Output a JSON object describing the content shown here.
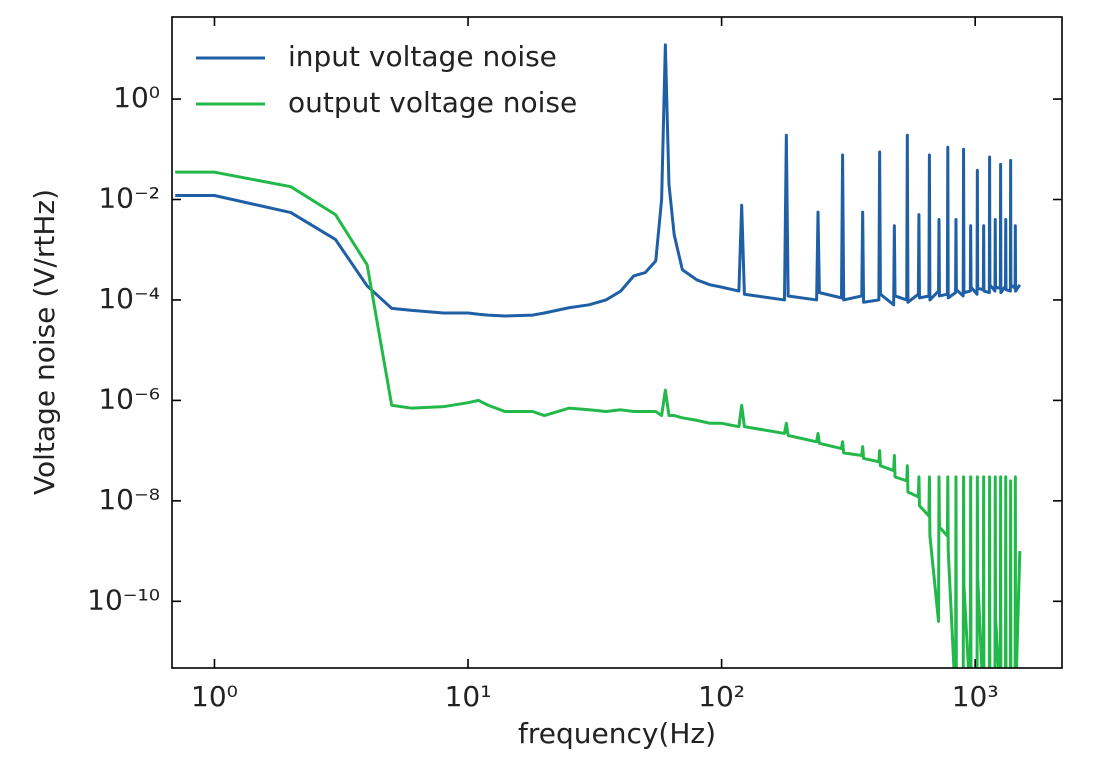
{
  "chart_data": {
    "type": "line",
    "xlabel": "frequency(Hz)",
    "ylabel": "Voltage noise (V/rtHz)",
    "xscale": "log",
    "yscale": "log",
    "xlim": [
      0.68,
      2200
    ],
    "ylim": [
      4.7e-12,
      43
    ],
    "xticks": [
      {
        "value": 1,
        "label": "10⁰"
      },
      {
        "value": 10,
        "label": "10¹"
      },
      {
        "value": 100,
        "label": "10²"
      },
      {
        "value": 1000,
        "label": "10³"
      }
    ],
    "yticks": [
      {
        "value": 1e-10,
        "label": "10⁻¹⁰"
      },
      {
        "value": 1e-08,
        "label": "10⁻⁸"
      },
      {
        "value": 1e-06,
        "label": "10⁻⁶"
      },
      {
        "value": 0.0001,
        "label": "10⁻⁴"
      },
      {
        "value": 0.01,
        "label": "10⁻²"
      },
      {
        "value": 1,
        "label": "10⁰"
      }
    ],
    "legend": "upper left",
    "x": [
      0.7,
      1,
      2,
      3,
      4,
      5,
      6,
      8,
      10,
      11,
      12,
      14,
      18,
      20,
      25,
      30,
      35,
      40,
      45,
      50,
      55,
      58,
      60,
      62,
      65,
      70,
      80,
      90,
      100,
      117,
      120,
      123,
      177,
      180,
      183,
      237,
      240,
      243,
      297,
      300,
      303,
      357,
      360,
      363,
      417,
      420,
      423,
      477,
      480,
      483,
      537,
      540,
      543,
      597,
      600,
      603,
      657,
      660,
      663,
      717,
      720,
      723,
      777,
      780,
      783,
      837,
      840,
      843,
      897,
      900,
      903,
      957,
      960,
      963,
      1017,
      1020,
      1023,
      1077,
      1080,
      1083,
      1137,
      1140,
      1143,
      1197,
      1200,
      1203,
      1257,
      1260,
      1263,
      1317,
      1320,
      1323,
      1377,
      1380,
      1383,
      1437,
      1440,
      1443,
      1500
    ],
    "series": [
      {
        "name": "input voltage noise",
        "color": "#1f5fa6",
        "values": [
          0.012,
          0.012,
          0.0055,
          0.0016,
          0.00019,
          6.8e-05,
          6.2e-05,
          5.5e-05,
          5.5e-05,
          5.2e-05,
          5e-05,
          4.8e-05,
          5e-05,
          5.5e-05,
          7e-05,
          8e-05,
          0.0001,
          0.00015,
          0.0003,
          0.00035,
          0.0006,
          0.01,
          12,
          0.02,
          0.002,
          0.0004,
          0.00025,
          0.0002,
          0.00018,
          0.00015,
          0.0077,
          0.00013,
          0.0001,
          0.19,
          0.00012,
          0.0001,
          0.0056,
          0.00014,
          0.00011,
          0.077,
          0.0001,
          0.00012,
          0.0056,
          9e-05,
          0.0001,
          0.088,
          0.00013,
          8e-05,
          0.003,
          0.00012,
          0.0001,
          0.19,
          9e-05,
          0.00013,
          0.005,
          0.00011,
          0.00012,
          0.077,
          0.0001,
          0.00015,
          0.004,
          0.00012,
          0.00013,
          0.11,
          0.00011,
          0.00014,
          0.004,
          0.00016,
          0.00012,
          0.1,
          0.00014,
          0.00015,
          0.003,
          0.00018,
          0.00013,
          0.038,
          0.00017,
          0.00016,
          0.003,
          0.00015,
          0.00014,
          0.07,
          0.0002,
          0.00015,
          0.004,
          0.00018,
          0.00017,
          0.05,
          0.00014,
          0.00019,
          0.004,
          0.00016,
          0.00015,
          0.06,
          0.0002,
          0.00017,
          0.003,
          0.00015,
          0.0002
        ]
      },
      {
        "name": "output voltage noise",
        "color": "#22b84a",
        "values": [
          0.035,
          0.035,
          0.018,
          0.005,
          0.0005,
          8e-07,
          7e-07,
          7.5e-07,
          9e-07,
          1e-06,
          8e-07,
          6e-07,
          6e-07,
          5e-07,
          7e-07,
          6.5e-07,
          6e-07,
          6.5e-07,
          6e-07,
          6e-07,
          6e-07,
          5e-07,
          1.6e-06,
          5e-07,
          5e-07,
          4.5e-07,
          4e-07,
          3.5e-07,
          3.5e-07,
          3e-07,
          8e-07,
          3e-07,
          2.2e-07,
          3.5e-07,
          2e-07,
          1.5e-07,
          2.2e-07,
          1.4e-07,
          1.1e-07,
          1.5e-07,
          9e-08,
          8e-08,
          1.2e-07,
          7e-08,
          6e-08,
          1e-07,
          5e-08,
          4e-08,
          8e-08,
          3e-08,
          2.5e-08,
          5e-08,
          1.5e-08,
          1.2e-08,
          3e-08,
          8e-09,
          5e-09,
          3e-08,
          2e-09,
          4e-11,
          3e-08,
          3e-09,
          2e-09,
          3e-08,
          1e-09,
          1e-12,
          3e-08,
          1e-12,
          1e-12,
          3e-08,
          2e-10,
          1e-12,
          3e-08,
          1e-12,
          1e-12,
          3e-08,
          3e-10,
          1e-12,
          3e-08,
          1e-12,
          1e-12,
          3e-08,
          1e-12,
          1e-12,
          3e-08,
          5e-11,
          1e-12,
          3e-08,
          1e-12,
          1e-12,
          3e-08,
          1e-12,
          1e-12,
          2.5e-08,
          1e-12,
          1e-12,
          3e-08,
          1e-12,
          1e-09
        ]
      }
    ]
  }
}
